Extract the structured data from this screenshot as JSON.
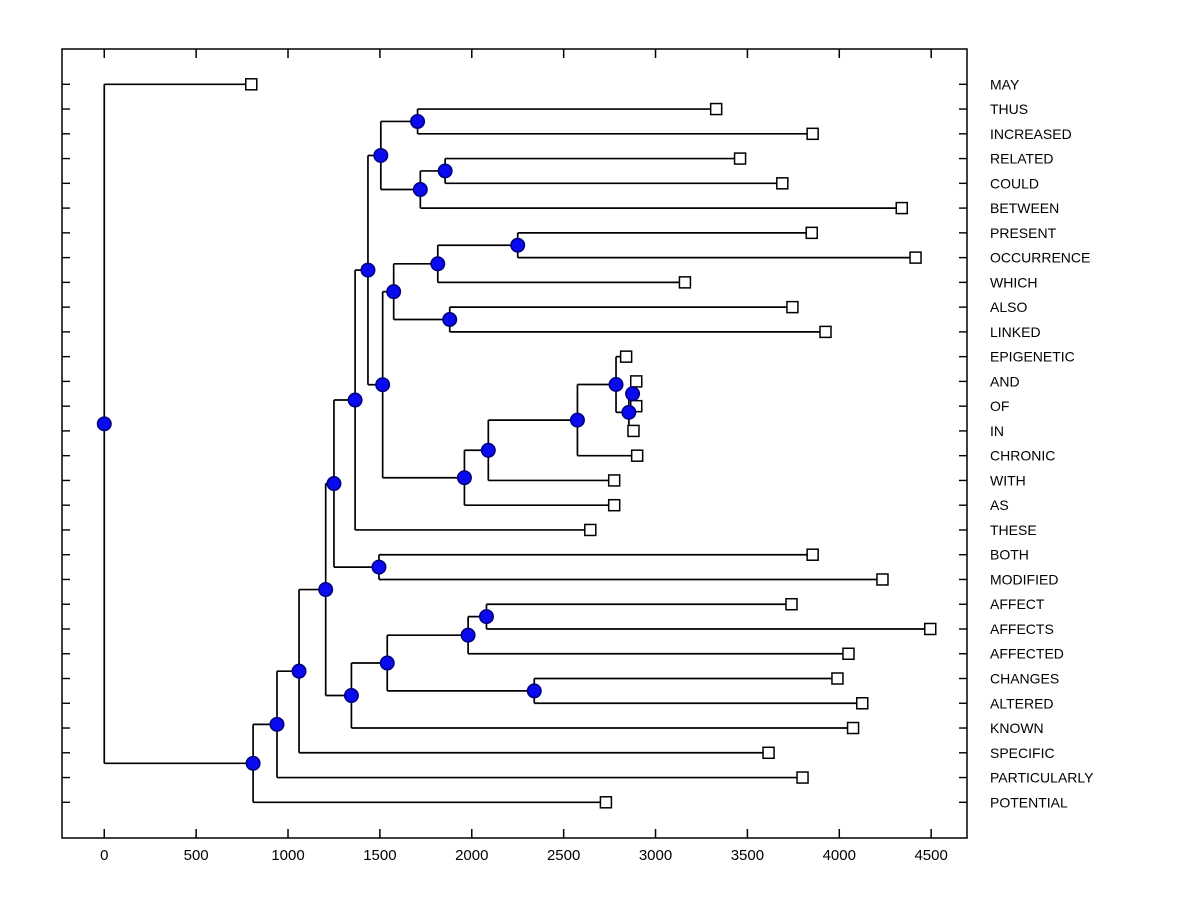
{
  "figure": {
    "background": "#ffffff",
    "line_color": "#000000",
    "axis_color": "#000000",
    "internal_node_fill": "#0a0af0",
    "internal_node_edge": "#000080",
    "leaf_marker_fill": "#ffffff",
    "leaf_marker_edge": "#000000"
  },
  "chart_data": {
    "type": "dendrogram",
    "subtype": "phylogenetic-tree",
    "orientation": "horizontal-root-left-leaves-right",
    "title": "",
    "xlabel": "",
    "ylabel": "",
    "x_axis": {
      "ticks": [
        0,
        500,
        1000,
        1500,
        2000,
        2500,
        3000,
        3500,
        4000,
        4500
      ]
    },
    "xlim": [
      -230,
      4695
    ],
    "leaves": [
      {
        "label": "MAY",
        "distance": 800
      },
      {
        "label": "THUS",
        "distance": 3330
      },
      {
        "label": "INCREASED",
        "distance": 3855
      },
      {
        "label": "RELATED",
        "distance": 3460
      },
      {
        "label": "COULD",
        "distance": 3690
      },
      {
        "label": "BETWEEN",
        "distance": 4340
      },
      {
        "label": "PRESENT",
        "distance": 3850
      },
      {
        "label": "OCCURRENCE",
        "distance": 4415
      },
      {
        "label": "WHICH",
        "distance": 3160
      },
      {
        "label": "ALSO",
        "distance": 3745
      },
      {
        "label": "LINKED",
        "distance": 3925
      },
      {
        "label": "EPIGENETIC",
        "distance": 2840
      },
      {
        "label": "AND",
        "distance": 2895
      },
      {
        "label": "OF",
        "distance": 2895
      },
      {
        "label": "IN",
        "distance": 2880
      },
      {
        "label": "CHRONIC",
        "distance": 2900
      },
      {
        "label": "WITH",
        "distance": 2775
      },
      {
        "label": "AS",
        "distance": 2775
      },
      {
        "label": "THESE",
        "distance": 2645
      },
      {
        "label": "BOTH",
        "distance": 3855
      },
      {
        "label": "MODIFIED",
        "distance": 4235
      },
      {
        "label": "AFFECT",
        "distance": 3740
      },
      {
        "label": "AFFECTS",
        "distance": 4495
      },
      {
        "label": "AFFECTED",
        "distance": 4050
      },
      {
        "label": "CHANGES",
        "distance": 3990
      },
      {
        "label": "ALTERED",
        "distance": 4125
      },
      {
        "label": "KNOWN",
        "distance": 4075
      },
      {
        "label": "SPECIFIC",
        "distance": 3615
      },
      {
        "label": "PARTICULARLY",
        "distance": 3800
      },
      {
        "label": "POTENTIAL",
        "distance": 2730
      }
    ],
    "tree": {
      "d": 0,
      "c": [
        {
          "leaf": "MAY"
        },
        {
          "d": 810,
          "c": [
            {
              "d": 940,
              "c": [
                {
                  "d": 1060,
                  "c": [
                    {
                      "d": 1205,
                      "c": [
                        {
                          "d": 1250,
                          "c": [
                            {
                              "d": 1365,
                              "c": [
                                {
                                  "d": 1435,
                                  "c": [
                                    {
                                      "d": 1505,
                                      "c": [
                                        {
                                          "d": 1705,
                                          "c": [
                                            {
                                              "leaf": "THUS"
                                            },
                                            {
                                              "leaf": "INCREASED"
                                            }
                                          ]
                                        },
                                        {
                                          "d": 1720,
                                          "c": [
                                            {
                                              "d": 1855,
                                              "c": [
                                                {
                                                  "leaf": "RELATED"
                                                },
                                                {
                                                  "leaf": "COULD"
                                                }
                                              ]
                                            },
                                            {
                                              "leaf": "BETWEEN"
                                            }
                                          ]
                                        }
                                      ]
                                    },
                                    {
                                      "d": 1515,
                                      "c": [
                                        {
                                          "d": 1575,
                                          "c": [
                                            {
                                              "d": 1815,
                                              "c": [
                                                {
                                                  "d": 2250,
                                                  "c": [
                                                    {
                                                      "leaf": "PRESENT"
                                                    },
                                                    {
                                                      "leaf": "OCCURRENCE"
                                                    }
                                                  ]
                                                },
                                                {
                                                  "leaf": "WHICH"
                                                }
                                              ]
                                            },
                                            {
                                              "d": 1880,
                                              "c": [
                                                {
                                                  "leaf": "ALSO"
                                                },
                                                {
                                                  "leaf": "LINKED"
                                                }
                                              ]
                                            }
                                          ]
                                        },
                                        {
                                          "d": 1960,
                                          "c": [
                                            {
                                              "d": 2090,
                                              "c": [
                                                {
                                                  "d": 2575,
                                                  "c": [
                                                    {
                                                      "d": 2785,
                                                      "c": [
                                                        {
                                                          "leaf": "EPIGENETIC"
                                                        },
                                                        {
                                                          "d": 2855,
                                                          "c": [
                                                            {
                                                              "d": 2875,
                                                              "c": [
                                                                {
                                                                  "leaf": "AND"
                                                                },
                                                                {
                                                                  "leaf": "OF"
                                                                }
                                                              ]
                                                            },
                                                            {
                                                              "leaf": "IN"
                                                            }
                                                          ]
                                                        }
                                                      ]
                                                    },
                                                    {
                                                      "leaf": "CHRONIC"
                                                    }
                                                  ]
                                                },
                                                {
                                                  "leaf": "WITH"
                                                }
                                              ]
                                            },
                                            {
                                              "leaf": "AS"
                                            }
                                          ]
                                        }
                                      ]
                                    }
                                  ]
                                },
                                {
                                  "leaf": "THESE"
                                }
                              ]
                            },
                            {
                              "d": 1495,
                              "c": [
                                {
                                  "leaf": "BOTH"
                                },
                                {
                                  "leaf": "MODIFIED"
                                }
                              ]
                            }
                          ]
                        },
                        {
                          "d": 1345,
                          "c": [
                            {
                              "d": 1540,
                              "c": [
                                {
                                  "d": 1980,
                                  "c": [
                                    {
                                      "d": 2080,
                                      "c": [
                                        {
                                          "leaf": "AFFECT"
                                        },
                                        {
                                          "leaf": "AFFECTS"
                                        }
                                      ]
                                    },
                                    {
                                      "leaf": "AFFECTED"
                                    }
                                  ]
                                },
                                {
                                  "d": 2340,
                                  "c": [
                                    {
                                      "leaf": "CHANGES"
                                    },
                                    {
                                      "leaf": "ALTERED"
                                    }
                                  ]
                                }
                              ]
                            },
                            {
                              "leaf": "KNOWN"
                            }
                          ]
                        }
                      ]
                    },
                    {
                      "leaf": "SPECIFIC"
                    }
                  ]
                },
                {
                  "leaf": "PARTICULARLY"
                }
              ]
            },
            {
              "leaf": "POTENTIAL"
            }
          ]
        }
      ]
    }
  }
}
